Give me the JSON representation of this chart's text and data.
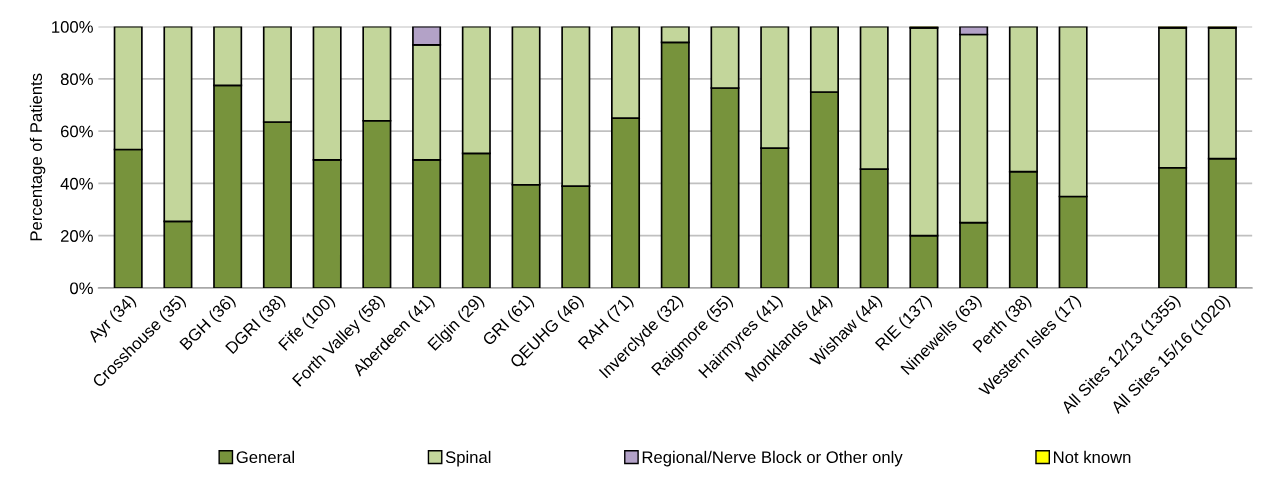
{
  "chart_data": {
    "type": "bar",
    "stacked": true,
    "ylabel": "Percentage of Patients",
    "categories": [
      "Ayr (34)",
      "Crosshouse (35)",
      "BGH (36)",
      "DGRI (38)",
      "Fife (100)",
      "Forth Valley (58)",
      "Aberdeen (41)",
      "Elgin (29)",
      "GRI (61)",
      "QEUHG (46)",
      "RAH (71)",
      "Inverclyde (32)",
      "Raigmore (55)",
      "Hairmyres (41)",
      "Monklands (44)",
      "Wishaw (44)",
      "RIE (137)",
      "Ninewells (63)",
      "Perth (38)",
      "Western Isles (17)",
      null,
      "All Sites 12/13 (1355)",
      "All Sites 15/16 (1020)"
    ],
    "series": [
      {
        "name": "General",
        "color": "#77933c",
        "values": [
          53,
          25.5,
          77.5,
          63.5,
          49,
          64,
          49,
          51.5,
          39.5,
          39,
          65,
          94,
          76.5,
          53.5,
          75,
          45.5,
          20,
          25,
          44.5,
          35,
          null,
          46,
          49.5
        ]
      },
      {
        "name": "Spinal",
        "color": "#c3d69b",
        "values": [
          47,
          74.5,
          22.5,
          36.5,
          51,
          36,
          44,
          48.5,
          60.5,
          61,
          35,
          6,
          23.5,
          46.5,
          25,
          54.5,
          79.5,
          72,
          55.5,
          65,
          null,
          53.5,
          50
        ]
      },
      {
        "name": "Regional/Nerve Block or Other only",
        "color": "#b3a2c7",
        "values": [
          0,
          0,
          0,
          0,
          0,
          0,
          7,
          0,
          0,
          0,
          0,
          0,
          0,
          0,
          0,
          0,
          0,
          3,
          0,
          0,
          null,
          0,
          0
        ]
      },
      {
        "name": "Not known",
        "color": "#ffff00",
        "values": [
          0,
          0,
          0,
          0,
          0,
          0,
          0,
          0,
          0,
          0,
          0,
          0,
          0,
          0,
          0,
          0,
          0.5,
          0,
          0,
          0,
          null,
          0.5,
          0.5
        ]
      }
    ],
    "ylim": [
      0,
      100
    ],
    "yticks": [
      {
        "value": 0,
        "label": "0%"
      },
      {
        "value": 20,
        "label": "20%"
      },
      {
        "value": 40,
        "label": "40%"
      },
      {
        "value": 60,
        "label": "60%"
      },
      {
        "value": 80,
        "label": "80%"
      },
      {
        "value": 100,
        "label": "100%"
      }
    ],
    "grid": "y",
    "legend": "bottom"
  }
}
